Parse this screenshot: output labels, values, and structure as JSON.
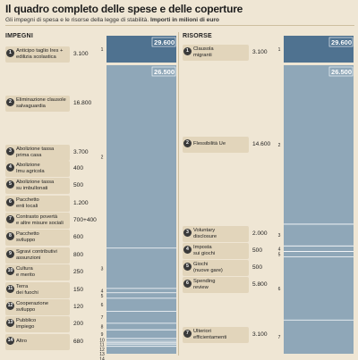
{
  "title": "Il quadro completo delle spese e delle coperture",
  "subtitle_plain": "Gli impegni di spesa e le risorse della legge di stabilità.",
  "subtitle_bold": "Importi in milioni di euro",
  "colors": {
    "top_block": "#4f7290",
    "bar": "#8fa7b8",
    "line": "#ffffff",
    "pill": "#e2d5bb",
    "badge": "#3a3a3a"
  },
  "chart_data": [
    {
      "type": "bar",
      "stacked": true,
      "heading": "IMPEGNI",
      "totals": [
        "29.600",
        "26.500"
      ],
      "items": [
        {
          "n": "1",
          "label": "Anticipo taglio Ires +\nedilizia scolastica",
          "value": "3.100",
          "amount": 3100
        },
        {
          "n": "2",
          "label": "Eliminazione clausole\nsalvaguardia",
          "value": "16.800",
          "amount": 16800
        },
        {
          "n": "3",
          "label": "Abolizione tassa\nprima casa",
          "value": "3.700",
          "amount": 3700
        },
        {
          "n": "4",
          "label": "Abolizione\nImu agricola",
          "value": "400",
          "amount": 400
        },
        {
          "n": "5",
          "label": "Abolizione tassa\nsu imbullonati",
          "value": "500",
          "amount": 500
        },
        {
          "n": "6",
          "label": "Pacchetto\nenti locali",
          "value": "1.200",
          "amount": 1200
        },
        {
          "n": "7",
          "label": "Contrasto povertà\ne altre misure sociali",
          "value": "700+400",
          "amount": 1100
        },
        {
          "n": "8",
          "label": "Pacchetto\nsviluppo",
          "value": "600",
          "amount": 600
        },
        {
          "n": "9",
          "label": "Sgravi contributivi\nassunzioni",
          "value": "800",
          "amount": 800
        },
        {
          "n": "10",
          "label": "Cultura\ne merito",
          "value": "250",
          "amount": 250
        },
        {
          "n": "11",
          "label": "Terra\ndei fuochi",
          "value": "150",
          "amount": 150
        },
        {
          "n": "12",
          "label": "Cooperazione\nsviluppo",
          "value": "120",
          "amount": 120
        },
        {
          "n": "13",
          "label": "Pubblico\nimpiego",
          "value": "200",
          "amount": 200
        },
        {
          "n": "14",
          "label": "Altro",
          "value": "680",
          "amount": 680
        }
      ]
    },
    {
      "type": "bar",
      "stacked": true,
      "heading": "RISORSE",
      "totals": [
        "29.600",
        "26.500"
      ],
      "items": [
        {
          "n": "1",
          "label": "Clausola\nmigranti",
          "value": "3.100",
          "amount": 3100
        },
        {
          "n": "2",
          "label": "Flessibilità Ue",
          "value": "14.600",
          "amount": 14600
        },
        {
          "n": "3",
          "label": "Voluntary\ndisclosure",
          "value": "2.000",
          "amount": 2000
        },
        {
          "n": "4",
          "label": "Imposta\nsui giochi",
          "value": "500",
          "amount": 500
        },
        {
          "n": "5",
          "label": "Giochi\n(nuove gare)",
          "value": "500",
          "amount": 500
        },
        {
          "n": "6",
          "label": "Spending\nreview",
          "value": "5.800",
          "amount": 5800
        },
        {
          "n": "7",
          "label": "Ulteriori\nefficientamenti",
          "value": "3.100",
          "amount": 3100
        }
      ]
    }
  ]
}
